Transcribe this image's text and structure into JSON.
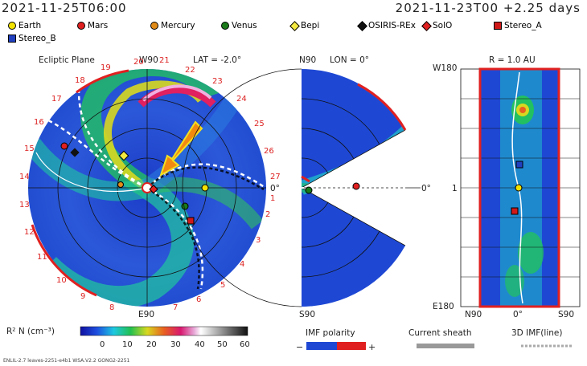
{
  "header": {
    "left_time": "2021-11-25T06:00",
    "right_time": "2021-11-23T00 +2.25 days"
  },
  "legend": [
    {
      "name": "Earth",
      "color": "#f2e200",
      "shape": "circle"
    },
    {
      "name": "Mars",
      "color": "#e02020",
      "shape": "circle"
    },
    {
      "name": "Mercury",
      "color": "#e08a18",
      "shape": "circle"
    },
    {
      "name": "Venus",
      "color": "#1a7a1a",
      "shape": "circle"
    },
    {
      "name": "Bepi",
      "color": "#f4ea40",
      "shape": "diamond"
    },
    {
      "name": "OSIRIS-REx",
      "color": "#111111",
      "shape": "diamond"
    },
    {
      "name": "SolO",
      "color": "#e02020",
      "shape": "diamond"
    },
    {
      "name": "Stereo_A",
      "color": "#d01818",
      "shape": "square"
    },
    {
      "name": "Stereo_B",
      "color": "#2040c0",
      "shape": "square"
    }
  ],
  "ecliptic": {
    "title": "Ecliptic Plane",
    "lat": "LAT = -2.0°",
    "top_label": "W90",
    "bottom_label": "E90",
    "right_label": "0°",
    "tick_numbers": [
      "20",
      "21",
      "22",
      "23",
      "24",
      "25",
      "26",
      "27",
      "18",
      "19",
      "17",
      "16",
      "15",
      "14",
      "13",
      "12",
      "11",
      "10",
      "9",
      "8",
      "7",
      "6",
      "5",
      "4",
      "3",
      "2",
      "1"
    ]
  },
  "meridional": {
    "lon": "LON = 0°",
    "top_label": "N90",
    "bottom_label": "S90",
    "right_label": "0°"
  },
  "radial": {
    "title": "R = 1.0 AU",
    "top_label": "W180",
    "bottom_label": "E180",
    "mid_label": "1",
    "x_left": "N90",
    "x_mid": "0°",
    "x_right": "S90"
  },
  "colorbar": {
    "label": "R² N (cm⁻³)",
    "ticks": [
      "0",
      "10",
      "20",
      "30",
      "40",
      "50",
      "60"
    ]
  },
  "imf": {
    "label": "IMF polarity",
    "minus": "−",
    "plus": "+"
  },
  "sheath": {
    "label": "Current sheath"
  },
  "imf3d": {
    "label": "3D IMF(line)"
  },
  "footer": {
    "text": "ENLIL-2.7 leaves-2251-e4b1 WSA.V2.2 GONG2-2251"
  }
}
